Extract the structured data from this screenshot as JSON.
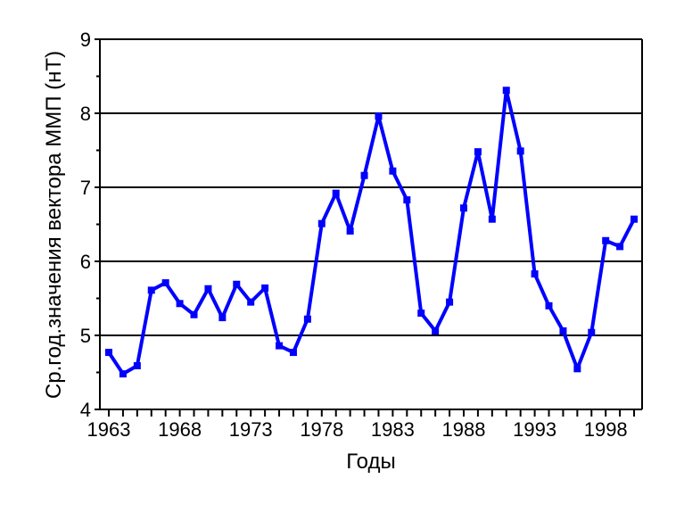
{
  "chart_data": {
    "type": "line",
    "title": "",
    "xlabel": "Годы",
    "ylabel": "Ср.год.значения вектора ММП (нТ)",
    "ylim": [
      4,
      9
    ],
    "xlim": [
      1963,
      2000
    ],
    "yticks": [
      "4",
      "5",
      "6",
      "7",
      "8",
      "9"
    ],
    "xticks": [
      "1963",
      "1968",
      "1973",
      "1978",
      "1983",
      "1988",
      "1993",
      "1998"
    ],
    "grid": "horizontal major lines",
    "legend": "none",
    "color": "#0000ff",
    "x": [
      1963,
      1964,
      1965,
      1966,
      1967,
      1968,
      1969,
      1970,
      1971,
      1972,
      1973,
      1974,
      1975,
      1976,
      1977,
      1978,
      1979,
      1980,
      1981,
      1982,
      1983,
      1984,
      1985,
      1986,
      1987,
      1988,
      1989,
      1990,
      1991,
      1992,
      1993,
      1994,
      1995,
      1996,
      1997,
      1998,
      1999,
      2000
    ],
    "values": [
      4.77,
      4.48,
      4.59,
      5.61,
      5.71,
      5.43,
      5.28,
      5.63,
      5.24,
      5.69,
      5.45,
      5.64,
      4.86,
      4.77,
      5.22,
      6.51,
      6.92,
      6.41,
      7.16,
      7.96,
      7.22,
      6.83,
      5.3,
      5.06,
      5.45,
      6.72,
      7.48,
      6.57,
      8.31,
      7.49,
      5.83,
      5.4,
      5.06,
      4.55,
      5.04,
      6.28,
      6.2,
      6.57
    ]
  }
}
